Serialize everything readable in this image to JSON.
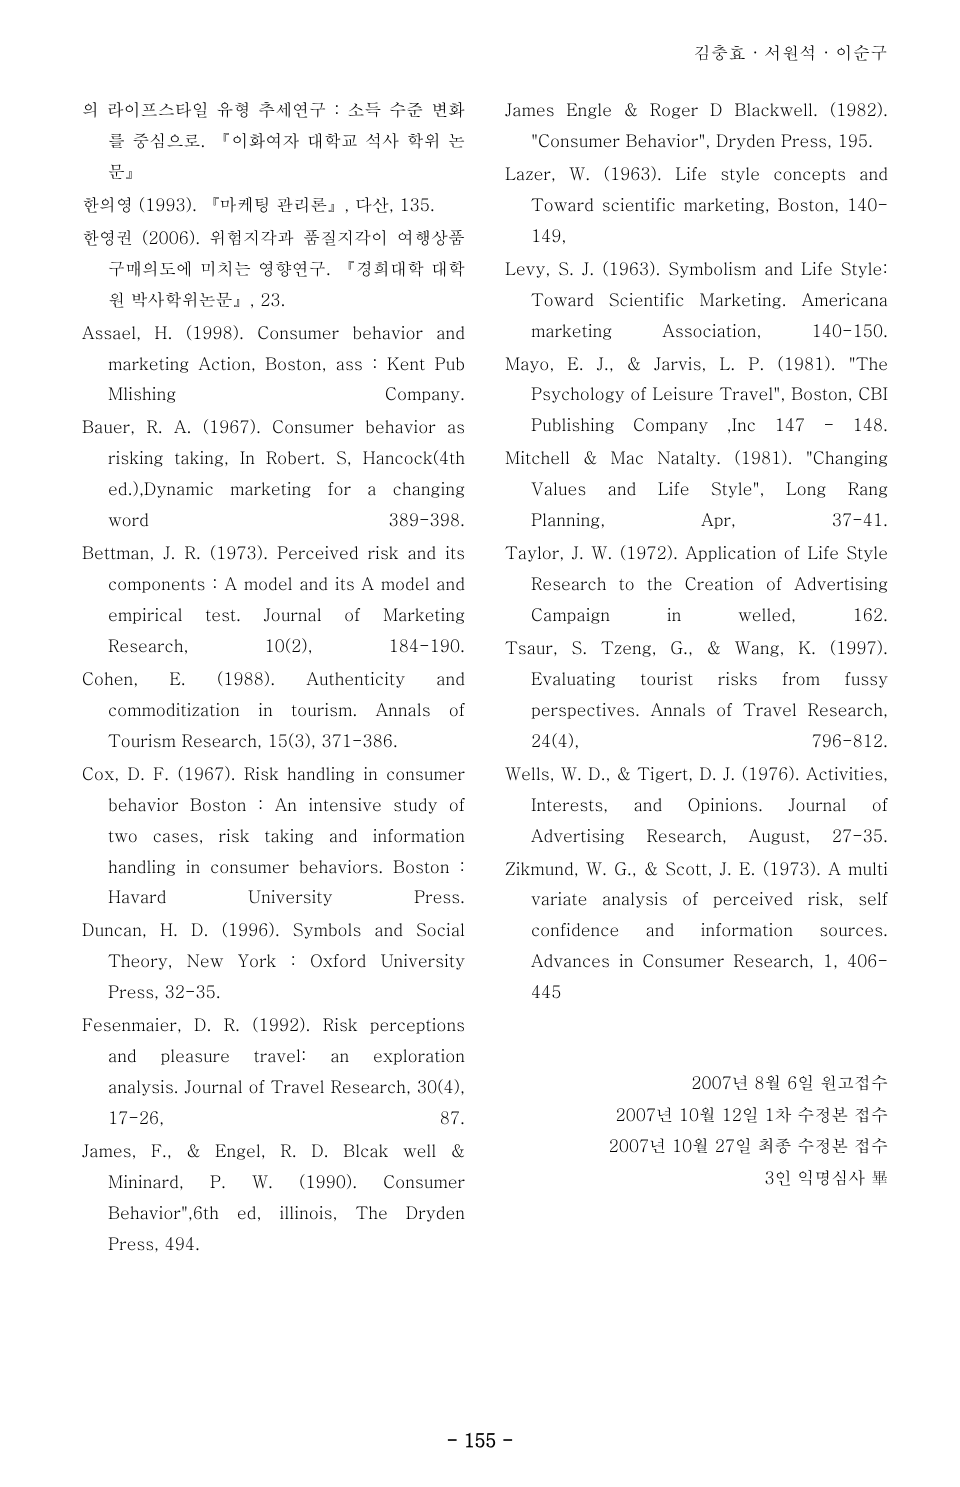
{
  "header": "김충효 · 서원석 · 이순구",
  "left_refs": [
    "의 라이프스타일 유형 추세연구 : 소득 수준 변화를 중심으로. 『이화여자 대학교 석사 학위 논문』",
    "한의영 (1993). 『마케팅 관리론』, 다산, 135.",
    "한영권 (2006). 위험지각과 품질지각이 여행상품 구매의도에 미치는 영향연구. 『경희대학 대학원 박사학위논문』, 23.",
    "Assael, H. (1998). Consumer behavior and marketing Action, Boston, ass : Kent Pub Mlishing Company.",
    "Bauer, R. A. (1967). Consumer behavior as risking taking, In Robert. S, Hancock(4th ed.),Dynamic marketing for a changing word 389-398.",
    "Bettman, J. R. (1973). Perceived risk and its components : A model and its A model and empirical test. Journal of Marketing Research, 10(2), 184-190.",
    "Cohen, E. (1988). Authenticity and commoditization in tourism. Annals of Tourism Research, 15(3), 371-386.",
    "Cox, D. F. (1967). Risk handling in consumer behavior Boston : An intensive study of two cases, risk taking and information handling in consumer behaviors. Boston : Havard University Press.",
    "Duncan, H. D. (1996). Symbols and Social Theory, New York : Oxford University Press, 32-35.",
    "Fesenmaier, D. R. (1992). Risk perceptions and pleasure travel: an exploration analysis. Journal of Travel Research, 30(4), 17-26, 87.",
    "James, F., & Engel, R. D. Blcak well & Mininard, P. W. (1990). Consumer Behavior\",6th ed, illinois, The Dryden  Press, 494."
  ],
  "right_refs": [
    "James Engle & Roger D Blackwell. (1982). \"Consumer Behavior\", Dryden Press, 195.",
    "Lazer, W. (1963). Life style concepts and Toward scientific marketing, Boston, 140-149,",
    "Levy, S. J. (1963). Symbolism and Life Style: Toward Scientific Marketing. Americana marketing Association, 140-150.",
    "Mayo, E. J., & Jarvis, L. P. (1981). \"The Psychology of Leisure Travel\", Boston, CBI Publishing Company ,Inc 147 - 148.",
    "Mitchell & Mac Natalty. (1981). \"Changing Values and Life Style\", Long Rang Planning, Apr, 37-41.",
    "Taylor, J. W. (1972). Application of Life Style Research to the Creation of Advertising Campaign in welled, 162.",
    "Tsaur, S. Tzeng, G., & Wang, K. (1997). Evaluating tourist risks from fussy perspectives. Annals of Travel Research, 24(4), 796-812.",
    "Wells, W. D., & Tigert, D. J. (1976). Activities, Interests, and Opinions. Journal of Advertising Research, August, 27-35.",
    "Zikmund, W. G., & Scott, J. E. (1973). A multi variate analysis of perceived risk, self confidence and information sources. Advances in Consumer Research, 1, 406-445"
  ],
  "submission": [
    "2007년 8월 6일 원고접수",
    "2007년 10월 12일 1차 수정본 접수",
    "2007년 10월 27일 최종 수정본 접수",
    "3인 익명심사 畢"
  ],
  "page_number": "- 155 -"
}
